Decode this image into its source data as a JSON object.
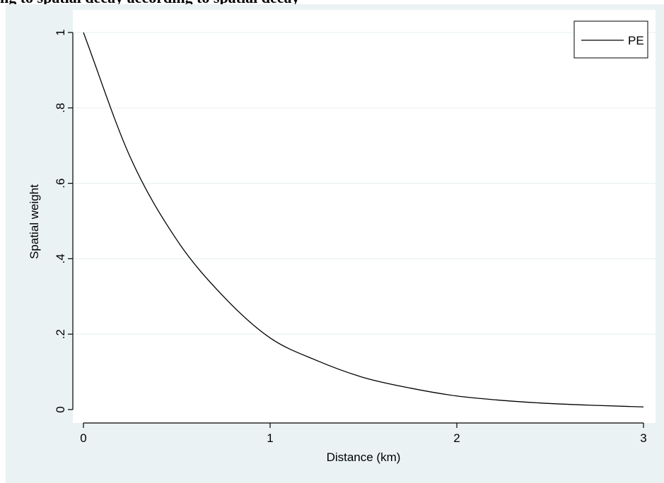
{
  "caption": "ng to spatial decay according to spatial decay",
  "chart_data": {
    "type": "line",
    "title": "",
    "xlabel": "Distance (km)",
    "ylabel": "Spatial weight",
    "xlim": [
      0,
      3
    ],
    "ylim": [
      0,
      1
    ],
    "x_ticks": [
      "0",
      "1",
      "2",
      "3"
    ],
    "y_ticks": [
      "0",
      ".2",
      ".4",
      ".6",
      ".8",
      "1"
    ],
    "grid": "horizontal",
    "legend": {
      "position": "top-right"
    },
    "series": [
      {
        "name": "PE",
        "color": "#000000",
        "x": [
          0,
          0.25,
          0.5,
          0.75,
          1.0,
          1.25,
          1.5,
          1.75,
          2.0,
          2.25,
          2.5,
          2.75,
          3.0
        ],
        "y": [
          1.0,
          0.67,
          0.45,
          0.3,
          0.19,
          0.13,
          0.085,
          0.057,
          0.036,
          0.024,
          0.016,
          0.011,
          0.007
        ]
      }
    ]
  },
  "colors": {
    "background": "#eaf2f3",
    "plot_background": "#ffffff",
    "grid": "#eaf2f3",
    "line": "#000000"
  }
}
